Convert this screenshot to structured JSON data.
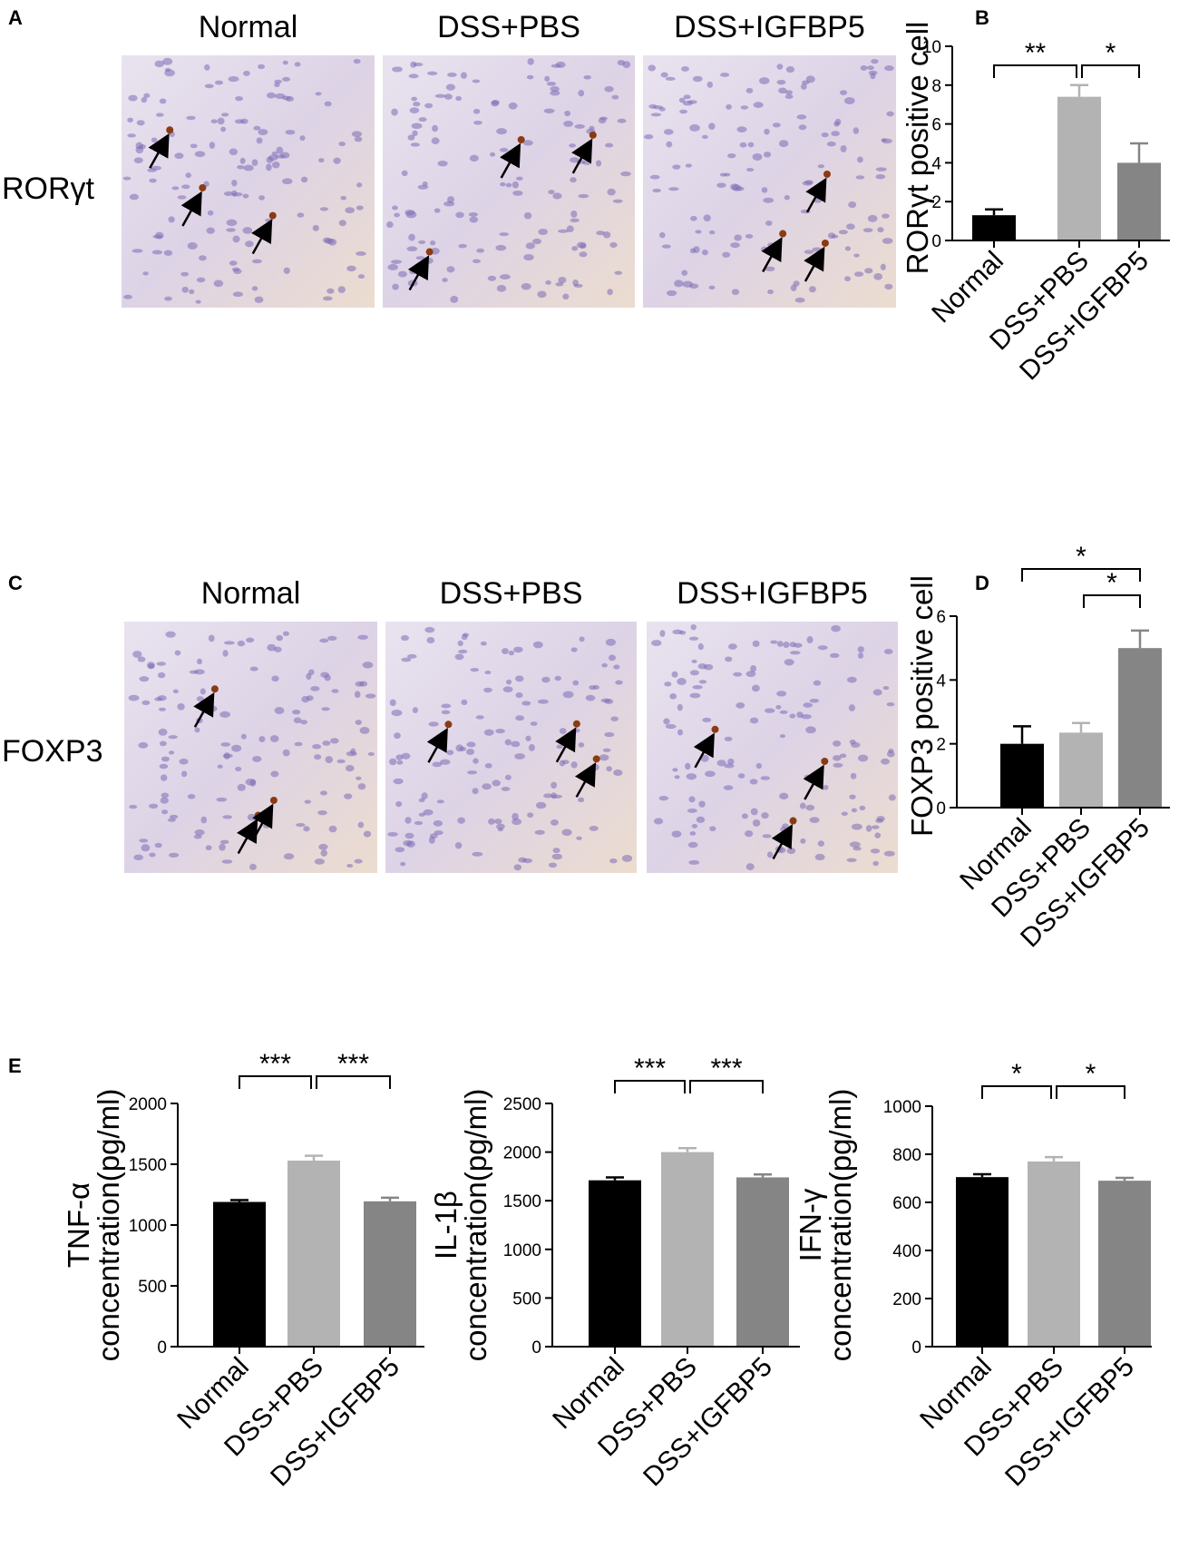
{
  "panels": {
    "letters": [
      "A",
      "B",
      "C",
      "D",
      "E"
    ],
    "image_columns": [
      "Normal",
      "DSS+PBS",
      "DSS+IGFBP5"
    ],
    "row_labels": [
      "RORγt",
      "FOXP3"
    ]
  },
  "chart_data": [
    {
      "type": "bar",
      "ylabel": [
        "RORγt positive cell"
      ],
      "categories": [
        "Normal",
        "DSS+PBS",
        "DSS+IGFBP5"
      ],
      "values": [
        1.3,
        7.4,
        4.0
      ],
      "errors": [
        0.3,
        0.6,
        1.0
      ],
      "colors": [
        "#000000",
        "#b3b3b3",
        "#858585"
      ],
      "ylim": [
        0,
        10
      ],
      "yticks": [
        0,
        2,
        4,
        6,
        8,
        10
      ],
      "annotations": [
        "**",
        "*"
      ]
    },
    {
      "type": "bar",
      "ylabel": [
        "FOXP3 positive cell"
      ],
      "categories": [
        "Normal",
        "DSS+PBS",
        "DSS+IGFBP5"
      ],
      "values": [
        2.0,
        2.35,
        5.0
      ],
      "errors": [
        0.55,
        0.3,
        0.55
      ],
      "colors": [
        "#000000",
        "#b3b3b3",
        "#858585"
      ],
      "ylim": [
        0,
        6
      ],
      "yticks": [
        0,
        2,
        4,
        6
      ],
      "annotations": [
        "*",
        "*"
      ]
    },
    {
      "type": "bar",
      "ylabel": [
        "TNF-α",
        "concentration(pg/ml)"
      ],
      "categories": [
        "Normal",
        "DSS+PBS",
        "DSS+IGFBP5"
      ],
      "values": [
        1190,
        1530,
        1195
      ],
      "errors": [
        15,
        40,
        30
      ],
      "colors": [
        "#000000",
        "#b3b3b3",
        "#858585"
      ],
      "ylim": [
        0,
        2000
      ],
      "yticks": [
        0,
        500,
        1000,
        1500,
        2000
      ],
      "annotations": [
        "***",
        "***"
      ]
    },
    {
      "type": "bar",
      "ylabel": [
        "IL-1β",
        "concentration(pg/ml)"
      ],
      "categories": [
        "Normal",
        "DSS+PBS",
        "DSS+IGFBP5"
      ],
      "values": [
        1710,
        2000,
        1740
      ],
      "errors": [
        30,
        40,
        30
      ],
      "colors": [
        "#000000",
        "#b3b3b3",
        "#858585"
      ],
      "ylim": [
        0,
        2500
      ],
      "yticks": [
        0,
        500,
        1000,
        1500,
        2000,
        2500
      ],
      "annotations": [
        "***",
        "***"
      ]
    },
    {
      "type": "bar",
      "ylabel": [
        "IFN-γ",
        "concentration(pg/ml)"
      ],
      "categories": [
        "Normal",
        "DSS+PBS",
        "DSS+IGFBP5"
      ],
      "values": [
        705,
        770,
        690
      ],
      "errors": [
        12,
        18,
        12
      ],
      "colors": [
        "#000000",
        "#b3b3b3",
        "#858585"
      ],
      "ylim": [
        0,
        1000
      ],
      "yticks": [
        0,
        200,
        400,
        600,
        800,
        1000
      ],
      "annotations": [
        "*",
        "*"
      ]
    }
  ]
}
